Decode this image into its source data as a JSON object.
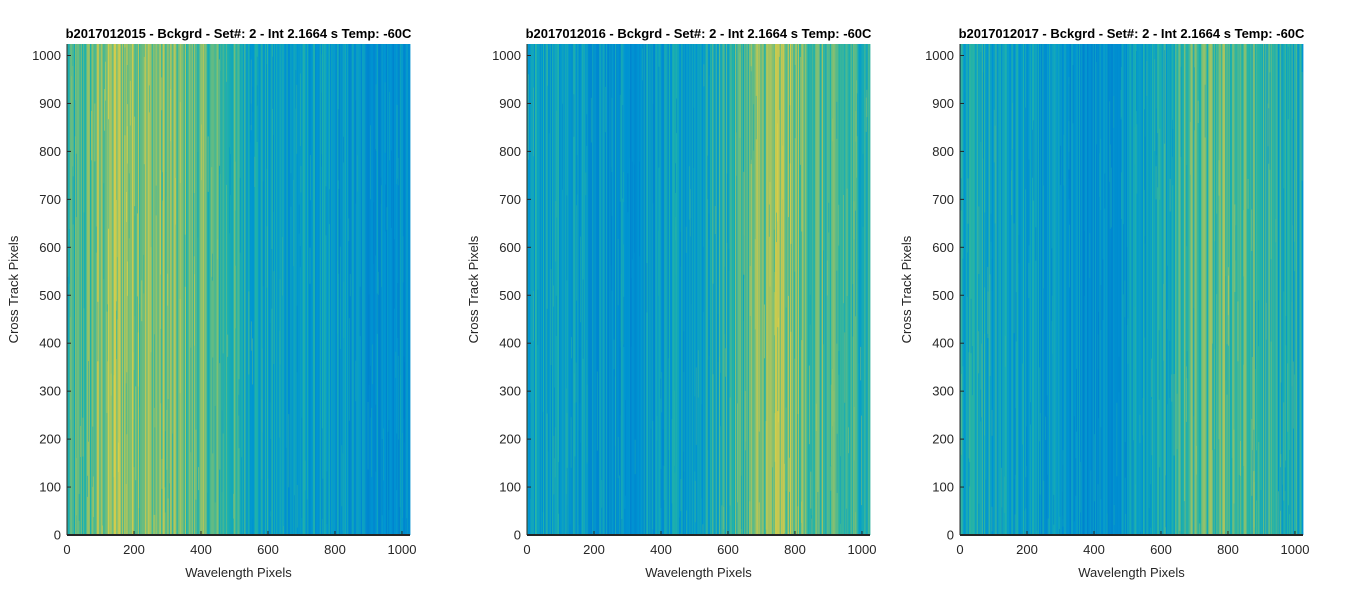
{
  "chart_data": [
    {
      "type": "heatmap",
      "title": "b2017012015 - Bckgrd - Set#: 2 - Int 2.1664 s Temp: -60C",
      "xlabel": "Wavelength Pixels",
      "ylabel": "Cross Track Pixels",
      "xlim": [
        0,
        1024
      ],
      "ylim": [
        0,
        1024
      ],
      "xticks": [
        0,
        200,
        400,
        600,
        800,
        1000
      ],
      "yticks": [
        0,
        100,
        200,
        300,
        400,
        500,
        600,
        700,
        800,
        900,
        1000
      ],
      "xtick_labels": [
        "0",
        "200",
        "400",
        "600",
        "800",
        "1000"
      ],
      "ytick_labels": [
        "0",
        "100",
        "200",
        "300",
        "400",
        "500",
        "600",
        "700",
        "800",
        "900",
        "1000"
      ],
      "column_profile": {
        "x": [
          0,
          100,
          150,
          200,
          300,
          400,
          500,
          600,
          700,
          800,
          900,
          1024
        ],
        "level": [
          0.55,
          0.72,
          0.78,
          0.76,
          0.7,
          0.66,
          0.55,
          0.42,
          0.4,
          0.35,
          0.32,
          0.28
        ]
      }
    },
    {
      "type": "heatmap",
      "title": "b2017012016 - Bckgrd - Set#: 2 - Int 2.1664 s Temp: -60C",
      "xlabel": "Wavelength Pixels",
      "ylabel": "Cross Track Pixels",
      "xlim": [
        0,
        1024
      ],
      "ylim": [
        0,
        1024
      ],
      "xticks": [
        0,
        200,
        400,
        600,
        800,
        1000
      ],
      "yticks": [
        0,
        100,
        200,
        300,
        400,
        500,
        600,
        700,
        800,
        900,
        1000
      ],
      "xtick_labels": [
        "0",
        "200",
        "400",
        "600",
        "800",
        "1000"
      ],
      "ytick_labels": [
        "0",
        "100",
        "200",
        "300",
        "400",
        "500",
        "600",
        "700",
        "800",
        "900",
        "1000"
      ],
      "column_profile": {
        "x": [
          0,
          100,
          200,
          300,
          400,
          500,
          600,
          700,
          750,
          800,
          900,
          1024
        ],
        "level": [
          0.45,
          0.4,
          0.36,
          0.34,
          0.36,
          0.42,
          0.55,
          0.72,
          0.76,
          0.7,
          0.6,
          0.55
        ]
      }
    },
    {
      "type": "heatmap",
      "title": "b2017012017 - Bckgrd - Set#: 2 - Int 2.1664 s Temp: -60C",
      "xlabel": "Wavelength Pixels",
      "ylabel": "Cross Track Pixels",
      "xlim": [
        0,
        1024
      ],
      "ylim": [
        0,
        1024
      ],
      "xticks": [
        0,
        200,
        400,
        600,
        800,
        1000
      ],
      "yticks": [
        0,
        100,
        200,
        300,
        400,
        500,
        600,
        700,
        800,
        900,
        1000
      ],
      "xtick_labels": [
        "0",
        "200",
        "400",
        "600",
        "800",
        "1000"
      ],
      "ytick_labels": [
        "0",
        "100",
        "200",
        "300",
        "400",
        "500",
        "600",
        "700",
        "800",
        "900",
        "1000"
      ],
      "column_profile": {
        "x": [
          0,
          100,
          200,
          300,
          400,
          500,
          600,
          700,
          800,
          900,
          1024
        ],
        "level": [
          0.5,
          0.44,
          0.38,
          0.32,
          0.28,
          0.36,
          0.48,
          0.62,
          0.66,
          0.56,
          0.46
        ]
      }
    }
  ]
}
